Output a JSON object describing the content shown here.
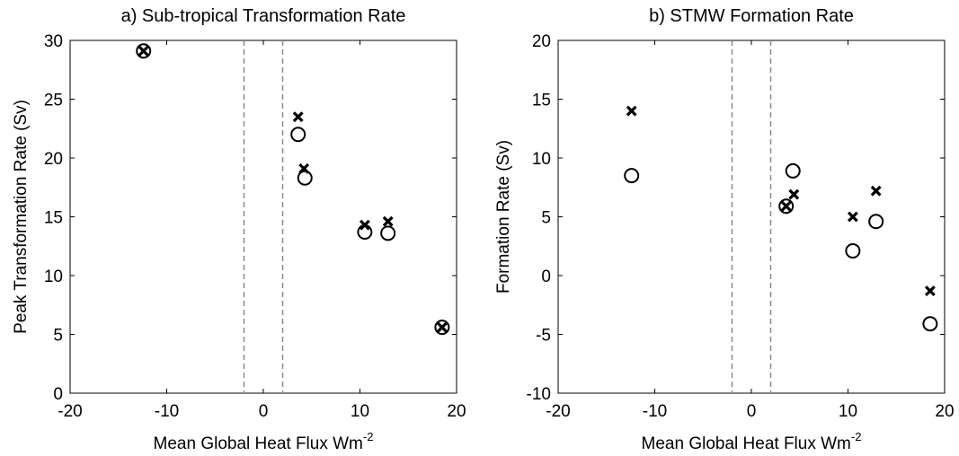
{
  "chart_data": [
    {
      "type": "scatter",
      "title": "a) Sub-tropical Transformation Rate",
      "xlabel": "Mean Global Heat Flux Wm",
      "xlabel_sup": "-2",
      "ylabel": "Peak Transformation Rate (Sv)",
      "xlim": [
        -20,
        20
      ],
      "ylim": [
        0,
        30
      ],
      "xticks": [
        "-20",
        "-10",
        "0",
        "10",
        "20"
      ],
      "yticks": [
        "0",
        "5",
        "10",
        "15",
        "20",
        "25",
        "30"
      ],
      "grid": false,
      "reference_lines_x": [
        -2,
        2
      ],
      "series": [
        {
          "marker": "x",
          "x": [
            -12.4,
            3.6,
            4.2,
            10.5,
            12.9,
            18.5
          ],
          "y": [
            29.1,
            23.5,
            19.1,
            14.3,
            14.6,
            5.6
          ]
        },
        {
          "marker": "o",
          "x": [
            -12.4,
            3.6,
            4.3,
            10.5,
            12.9,
            18.5
          ],
          "y": [
            29.1,
            22.0,
            18.3,
            13.7,
            13.6,
            5.6
          ]
        }
      ]
    },
    {
      "type": "scatter",
      "title": "b) STMW Formation Rate",
      "xlabel": "Mean Global Heat Flux Wm",
      "xlabel_sup": "-2",
      "ylabel": "Formation Rate (Sv)",
      "xlim": [
        -20,
        20
      ],
      "ylim": [
        -10,
        20
      ],
      "xticks": [
        "-20",
        "-10",
        "0",
        "10",
        "20"
      ],
      "yticks": [
        "-10",
        "-5",
        "0",
        "5",
        "10",
        "15",
        "20"
      ],
      "grid": false,
      "reference_lines_x": [
        -2,
        2
      ],
      "series": [
        {
          "marker": "x",
          "x": [
            -12.4,
            3.6,
            4.4,
            10.5,
            12.9,
            18.5
          ],
          "y": [
            14.0,
            5.9,
            6.9,
            5.0,
            7.2,
            -1.3
          ]
        },
        {
          "marker": "o",
          "x": [
            -12.4,
            3.6,
            4.3,
            10.5,
            12.9,
            18.5
          ],
          "y": [
            8.5,
            5.9,
            8.9,
            2.1,
            4.6,
            -4.1
          ]
        }
      ]
    }
  ]
}
